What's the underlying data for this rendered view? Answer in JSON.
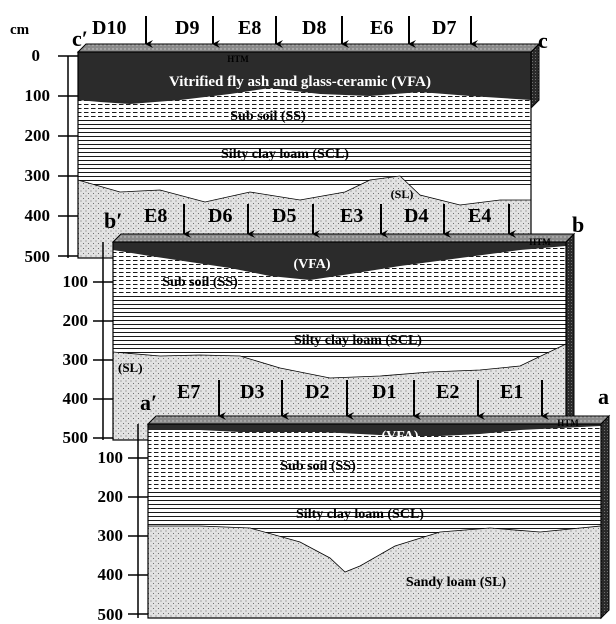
{
  "unit_label": "cm",
  "depth_ticks": [
    "0",
    "100",
    "200",
    "300",
    "400",
    "500"
  ],
  "panels": [
    {
      "id": "c",
      "left_label": "c′",
      "right_label": "c",
      "stations": [
        "D10",
        "D9",
        "E8",
        "D8",
        "E6",
        "D7"
      ],
      "htm_label": "HTM",
      "layers": {
        "vfa": "Vitrified fly ash and glass-ceramic (VFA)",
        "subsoil": "Sub soil (SS)",
        "scl": "Silty clay loam  (SCL)",
        "sl": "(SL)"
      }
    },
    {
      "id": "b",
      "left_label": "b′",
      "right_label": "b",
      "stations": [
        "E8",
        "D6",
        "D5",
        "E3",
        "D4",
        "E4"
      ],
      "htm_label": "HTM",
      "layers": {
        "vfa": "(VFA)",
        "subsoil": "Sub soil (SS)",
        "scl": "Silty clay loam  (SCL)",
        "sl": "(SL)"
      }
    },
    {
      "id": "a",
      "left_label": "a′",
      "right_label": "a",
      "stations": [
        "E7",
        "D3",
        "D2",
        "D1",
        "E2",
        "E1"
      ],
      "htm_label": "HTM",
      "layers": {
        "vfa": "(VFA)",
        "subsoil": "Sub soil (SS)",
        "scl": "Silty clay loam  (SCL)",
        "sl": "Sandy loam (SL)"
      }
    }
  ],
  "colors": {
    "vfa": "#2b2b2b",
    "top_face": "#9a9a9a",
    "side_face": "#3a3a3a",
    "line": "#000000",
    "background": "#ffffff"
  }
}
